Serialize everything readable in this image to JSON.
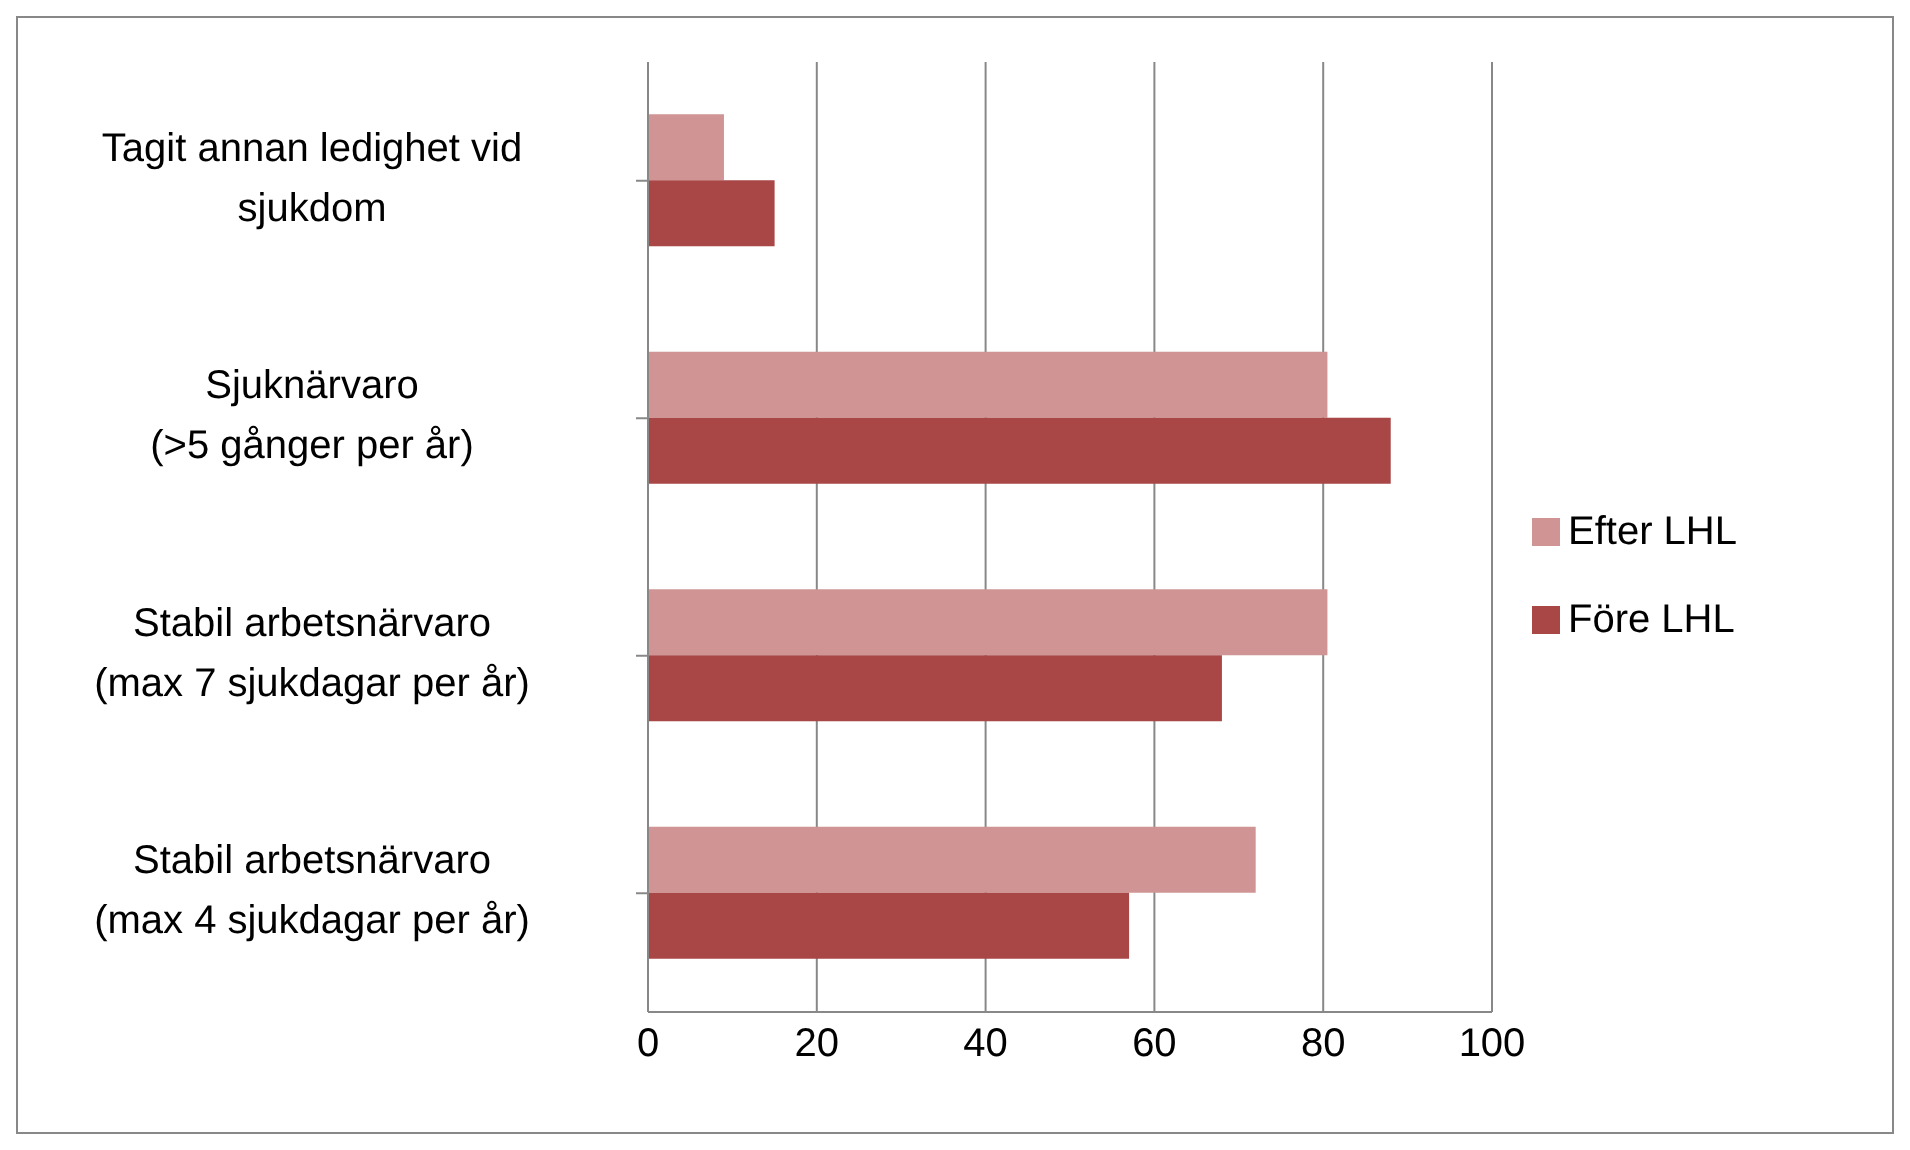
{
  "chart_data": {
    "type": "bar",
    "orientation": "horizontal",
    "categories": [
      "Tagit annan ledighet vid sjukdom",
      "Sjuknärvaro (>5 gånger per år)",
      "Stabil arbetsnärvaro (max 7 sjukdagar per år)",
      "Stabil arbetsnärvaro (max 4 sjukdagar per år)"
    ],
    "series": [
      {
        "name": "Efter LHL",
        "color": "#d09494",
        "values": [
          9,
          80.5,
          80.5,
          72
        ]
      },
      {
        "name": "Före LHL",
        "color": "#a94646",
        "values": [
          15,
          88,
          68,
          57
        ]
      }
    ],
    "xlim": [
      0,
      100
    ],
    "xticks": [
      0,
      20,
      40,
      60,
      80,
      100
    ],
    "grid": "x",
    "legend": "right"
  }
}
